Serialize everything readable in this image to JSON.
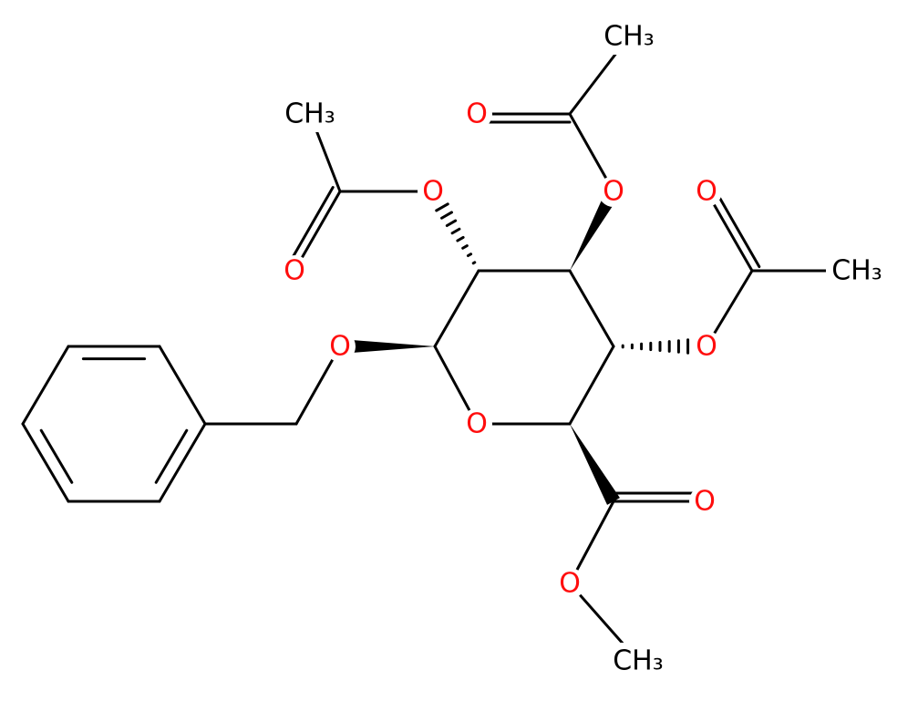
{
  "labels": [
    "O",
    "O",
    "O",
    "O",
    "CH₃",
    "O",
    "O",
    "CH₃",
    "O",
    "O",
    "CH₃",
    "O",
    "O",
    "CH₃"
  ]
}
